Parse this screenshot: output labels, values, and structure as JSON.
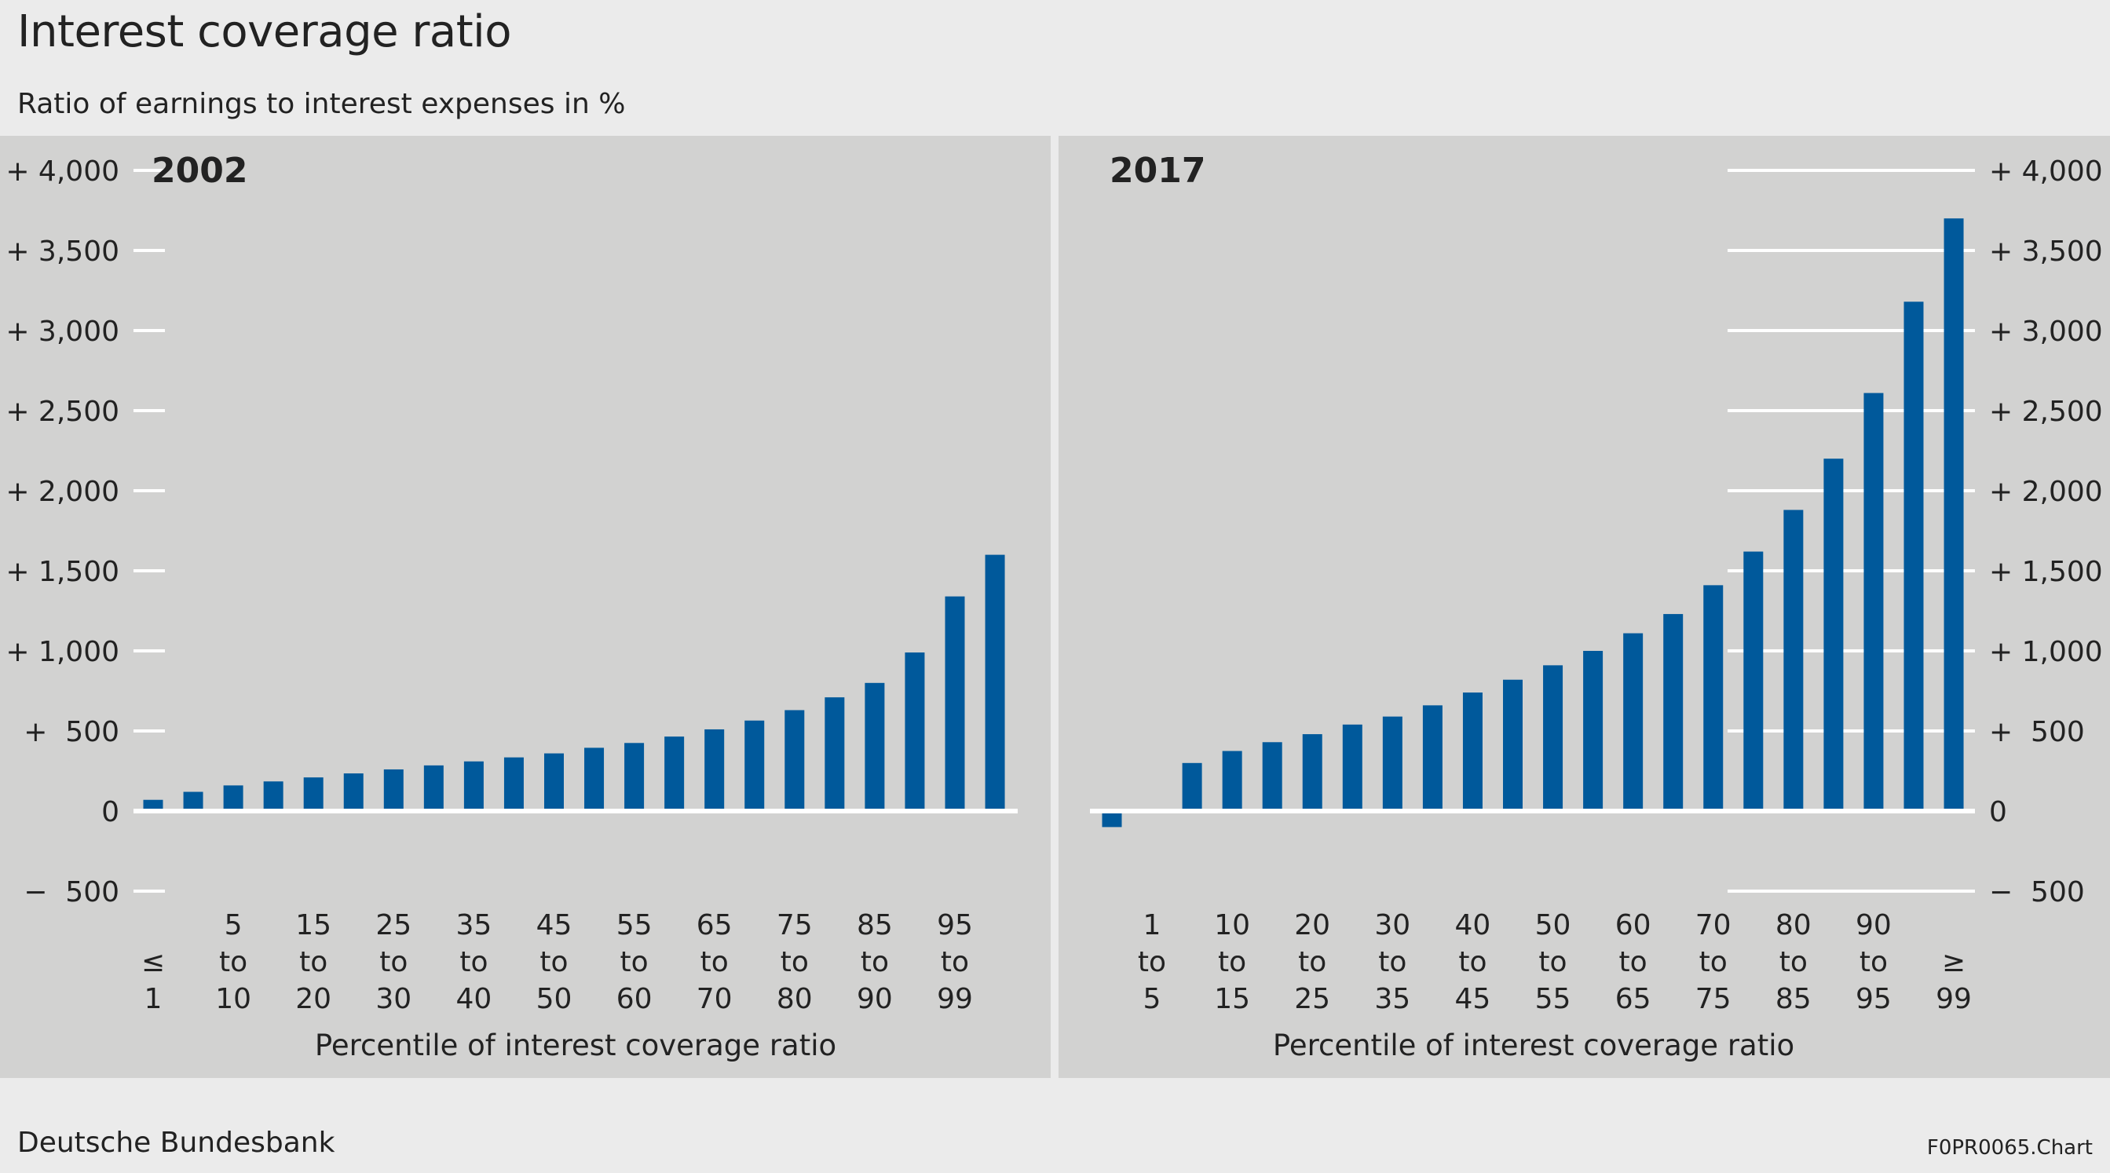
{
  "title": "Interest coverage ratio",
  "subtitle": "Ratio of earnings to interest expenses in %",
  "footer": {
    "source": "Deutsche Bundesbank",
    "code": "F0PR0065.Chart"
  },
  "colors": {
    "bar": "#00599b",
    "panel": "#d2d2d1",
    "background": "#ebebeb",
    "gridline": "#ffffff",
    "text": "#222222"
  },
  "chart_data": [
    {
      "type": "bar",
      "title": "2002",
      "xlabel": "Percentile of interest coverage ratio",
      "ylabel": "",
      "ylim": [
        -500,
        4000
      ],
      "y_ticks": [
        4000,
        3500,
        3000,
        2500,
        2000,
        1500,
        1000,
        500,
        0,
        -500
      ],
      "y_tick_labels": [
        "+ 4,000",
        "+ 3,500",
        "+ 3,000",
        "+ 2,500",
        "+ 2,000",
        "+ 1,500",
        "+ 1,000",
        "+  500",
        "0",
        "−  500"
      ],
      "y_axis_side": "left",
      "values": [
        70,
        120,
        160,
        185,
        210,
        235,
        260,
        285,
        310,
        335,
        360,
        395,
        425,
        465,
        510,
        565,
        630,
        710,
        800,
        990,
        1340,
        1600
      ],
      "category_labels": [
        [
          "≤",
          "1"
        ],
        [
          "5",
          "to",
          "10"
        ],
        [
          "15",
          "to",
          "20"
        ],
        [
          "25",
          "to",
          "30"
        ],
        [
          "35",
          "to",
          "40"
        ],
        [
          "45",
          "to",
          "50"
        ],
        [
          "55",
          "to",
          "60"
        ],
        [
          "65",
          "to",
          "70"
        ],
        [
          "75",
          "to",
          "80"
        ],
        [
          "85",
          "to",
          "90"
        ],
        [
          "95",
          "to",
          "99"
        ]
      ]
    },
    {
      "type": "bar",
      "title": "2017",
      "xlabel": "Percentile of interest coverage ratio",
      "ylabel": "",
      "ylim": [
        -500,
        4000
      ],
      "y_ticks": [
        4000,
        3500,
        3000,
        2500,
        2000,
        1500,
        1000,
        500,
        0,
        -500
      ],
      "y_tick_labels": [
        "+ 4,000",
        "+ 3,500",
        "+ 3,000",
        "+ 2,500",
        "+ 2,000",
        "+ 1,500",
        "+ 1,000",
        "+  500",
        "0",
        "−  500"
      ],
      "y_axis_side": "right",
      "values": [
        -100,
        0,
        300,
        375,
        430,
        480,
        540,
        590,
        660,
        740,
        820,
        910,
        1000,
        1110,
        1230,
        1410,
        1620,
        1880,
        2200,
        2610,
        3180,
        3700
      ],
      "category_labels": [
        [
          "1",
          "to",
          "5"
        ],
        [
          "10",
          "to",
          "15"
        ],
        [
          "20",
          "to",
          "25"
        ],
        [
          "30",
          "to",
          "35"
        ],
        [
          "40",
          "to",
          "45"
        ],
        [
          "50",
          "to",
          "55"
        ],
        [
          "60",
          "to",
          "65"
        ],
        [
          "70",
          "to",
          "75"
        ],
        [
          "80",
          "to",
          "85"
        ],
        [
          "90",
          "to",
          "95"
        ],
        [
          "≥",
          "99"
        ]
      ]
    }
  ]
}
